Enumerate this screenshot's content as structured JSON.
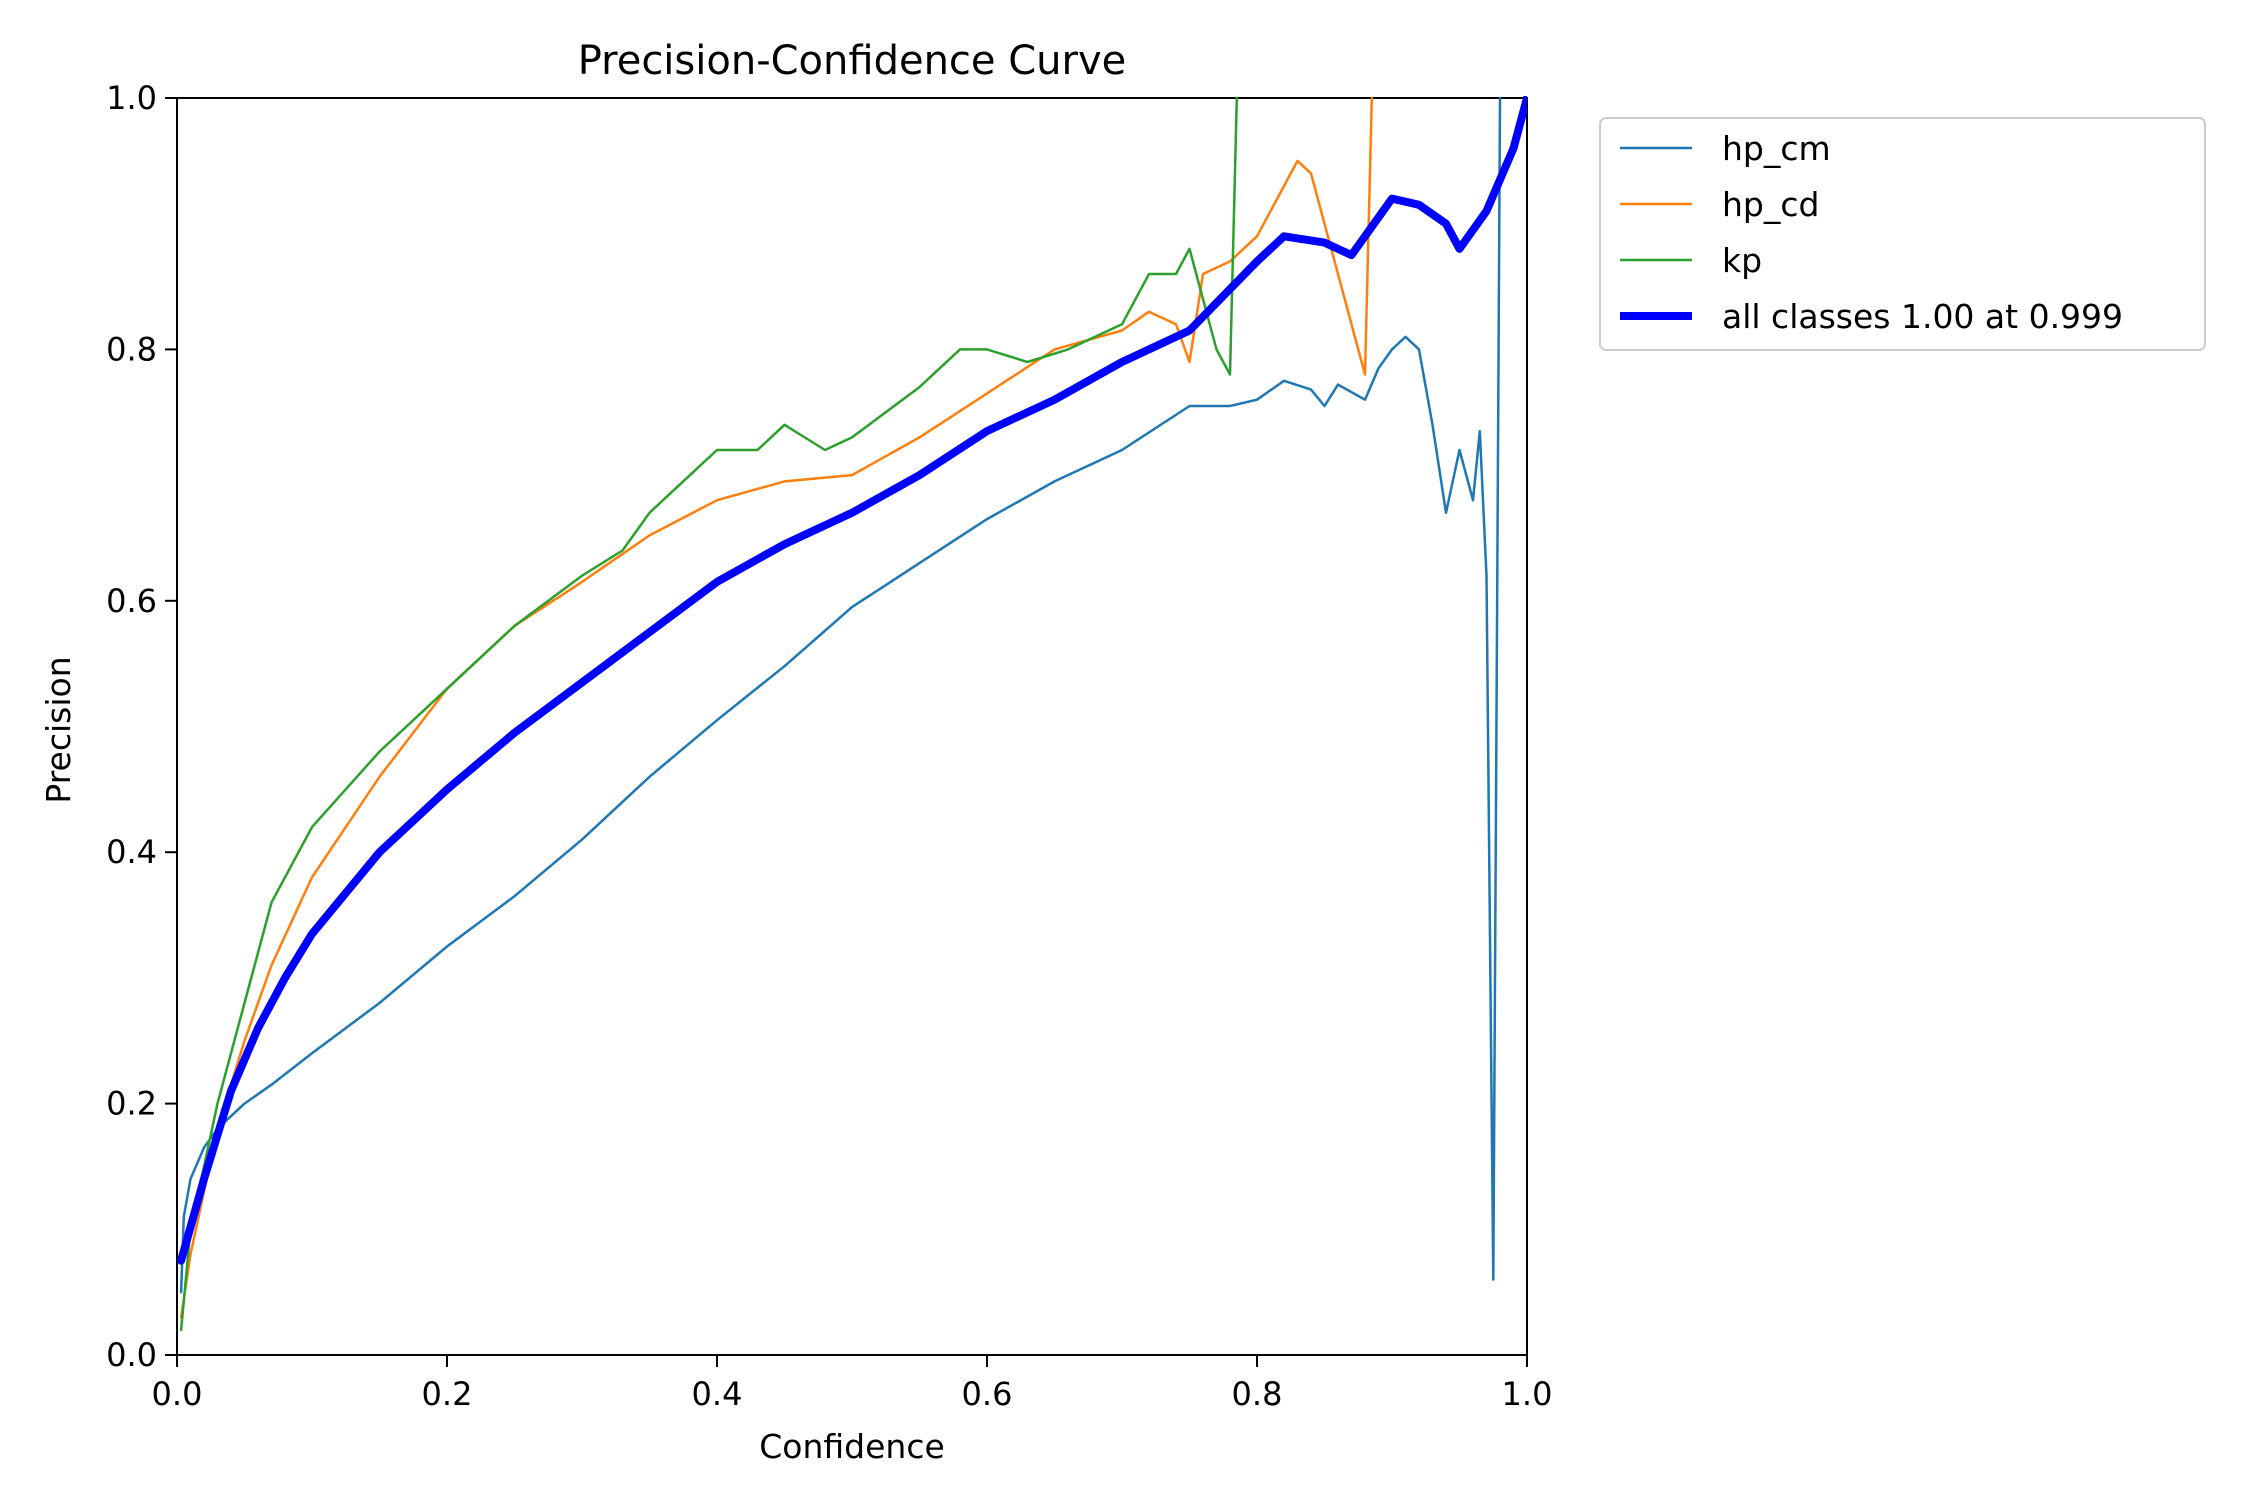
{
  "chart_data": {
    "type": "line",
    "title": "Precision-Confidence Curve",
    "xlabel": "Confidence",
    "ylabel": "Precision",
    "xlim": [
      0,
      1
    ],
    "ylim": [
      0,
      1
    ],
    "xticks": [
      "0.0",
      "0.2",
      "0.4",
      "0.6",
      "0.8",
      "1.0"
    ],
    "yticks": [
      "0.0",
      "0.2",
      "0.4",
      "0.6",
      "0.8",
      "1.0"
    ],
    "grid": false,
    "legend_position": "outside-upper-right",
    "series": [
      {
        "name": "hp_cm",
        "color": "#1f77b4",
        "style": "thin",
        "points": [
          [
            0.003,
            0.05
          ],
          [
            0.005,
            0.11
          ],
          [
            0.01,
            0.14
          ],
          [
            0.02,
            0.165
          ],
          [
            0.03,
            0.18
          ],
          [
            0.05,
            0.2
          ],
          [
            0.07,
            0.215
          ],
          [
            0.1,
            0.24
          ],
          [
            0.15,
            0.28
          ],
          [
            0.2,
            0.325
          ],
          [
            0.25,
            0.365
          ],
          [
            0.3,
            0.41
          ],
          [
            0.35,
            0.46
          ],
          [
            0.4,
            0.505
          ],
          [
            0.45,
            0.548
          ],
          [
            0.5,
            0.595
          ],
          [
            0.55,
            0.63
          ],
          [
            0.6,
            0.665
          ],
          [
            0.65,
            0.695
          ],
          [
            0.7,
            0.72
          ],
          [
            0.75,
            0.755
          ],
          [
            0.78,
            0.755
          ],
          [
            0.8,
            0.76
          ],
          [
            0.82,
            0.775
          ],
          [
            0.84,
            0.768
          ],
          [
            0.85,
            0.755
          ],
          [
            0.86,
            0.772
          ],
          [
            0.88,
            0.76
          ],
          [
            0.89,
            0.785
          ],
          [
            0.9,
            0.8
          ],
          [
            0.91,
            0.81
          ],
          [
            0.92,
            0.8
          ],
          [
            0.93,
            0.74
          ],
          [
            0.94,
            0.67
          ],
          [
            0.95,
            0.72
          ],
          [
            0.96,
            0.68
          ],
          [
            0.965,
            0.735
          ],
          [
            0.97,
            0.62
          ],
          [
            0.975,
            0.06
          ],
          [
            0.98,
            1.0
          ]
        ]
      },
      {
        "name": "hp_cd",
        "color": "#ff7f0e",
        "style": "thin",
        "points": [
          [
            0.003,
            0.03
          ],
          [
            0.01,
            0.08
          ],
          [
            0.03,
            0.18
          ],
          [
            0.05,
            0.25
          ],
          [
            0.07,
            0.31
          ],
          [
            0.1,
            0.38
          ],
          [
            0.15,
            0.46
          ],
          [
            0.2,
            0.53
          ],
          [
            0.25,
            0.58
          ],
          [
            0.3,
            0.615
          ],
          [
            0.35,
            0.652
          ],
          [
            0.4,
            0.68
          ],
          [
            0.45,
            0.695
          ],
          [
            0.5,
            0.7
          ],
          [
            0.55,
            0.73
          ],
          [
            0.6,
            0.765
          ],
          [
            0.65,
            0.8
          ],
          [
            0.7,
            0.815
          ],
          [
            0.72,
            0.83
          ],
          [
            0.74,
            0.82
          ],
          [
            0.75,
            0.79
          ],
          [
            0.76,
            0.86
          ],
          [
            0.78,
            0.87
          ],
          [
            0.8,
            0.89
          ],
          [
            0.82,
            0.93
          ],
          [
            0.83,
            0.95
          ],
          [
            0.84,
            0.94
          ],
          [
            0.85,
            0.9
          ],
          [
            0.87,
            0.82
          ],
          [
            0.88,
            0.78
          ],
          [
            0.885,
            1.0
          ]
        ]
      },
      {
        "name": "kp",
        "color": "#2ca02c",
        "style": "thin",
        "points": [
          [
            0.003,
            0.02
          ],
          [
            0.01,
            0.1
          ],
          [
            0.03,
            0.2
          ],
          [
            0.05,
            0.28
          ],
          [
            0.07,
            0.36
          ],
          [
            0.1,
            0.42
          ],
          [
            0.15,
            0.48
          ],
          [
            0.2,
            0.53
          ],
          [
            0.25,
            0.58
          ],
          [
            0.3,
            0.62
          ],
          [
            0.33,
            0.64
          ],
          [
            0.35,
            0.67
          ],
          [
            0.38,
            0.7
          ],
          [
            0.4,
            0.72
          ],
          [
            0.43,
            0.72
          ],
          [
            0.45,
            0.74
          ],
          [
            0.48,
            0.72
          ],
          [
            0.5,
            0.73
          ],
          [
            0.55,
            0.77
          ],
          [
            0.58,
            0.8
          ],
          [
            0.6,
            0.8
          ],
          [
            0.63,
            0.79
          ],
          [
            0.66,
            0.8
          ],
          [
            0.7,
            0.82
          ],
          [
            0.72,
            0.86
          ],
          [
            0.74,
            0.86
          ],
          [
            0.75,
            0.88
          ],
          [
            0.76,
            0.84
          ],
          [
            0.77,
            0.8
          ],
          [
            0.78,
            0.78
          ],
          [
            0.785,
            1.0
          ]
        ]
      },
      {
        "name": "all classes 1.00 at 0.999",
        "color": "#0000ff",
        "style": "thick",
        "points": [
          [
            0.003,
            0.075
          ],
          [
            0.02,
            0.14
          ],
          [
            0.04,
            0.21
          ],
          [
            0.06,
            0.26
          ],
          [
            0.08,
            0.3
          ],
          [
            0.1,
            0.335
          ],
          [
            0.15,
            0.4
          ],
          [
            0.2,
            0.45
          ],
          [
            0.25,
            0.495
          ],
          [
            0.3,
            0.535
          ],
          [
            0.35,
            0.575
          ],
          [
            0.4,
            0.615
          ],
          [
            0.45,
            0.645
          ],
          [
            0.5,
            0.67
          ],
          [
            0.55,
            0.7
          ],
          [
            0.6,
            0.735
          ],
          [
            0.65,
            0.76
          ],
          [
            0.7,
            0.79
          ],
          [
            0.75,
            0.815
          ],
          [
            0.8,
            0.87
          ],
          [
            0.82,
            0.89
          ],
          [
            0.85,
            0.885
          ],
          [
            0.87,
            0.875
          ],
          [
            0.9,
            0.92
          ],
          [
            0.92,
            0.915
          ],
          [
            0.94,
            0.9
          ],
          [
            0.95,
            0.88
          ],
          [
            0.97,
            0.91
          ],
          [
            0.99,
            0.96
          ],
          [
            1.0,
            1.0
          ]
        ]
      }
    ]
  }
}
